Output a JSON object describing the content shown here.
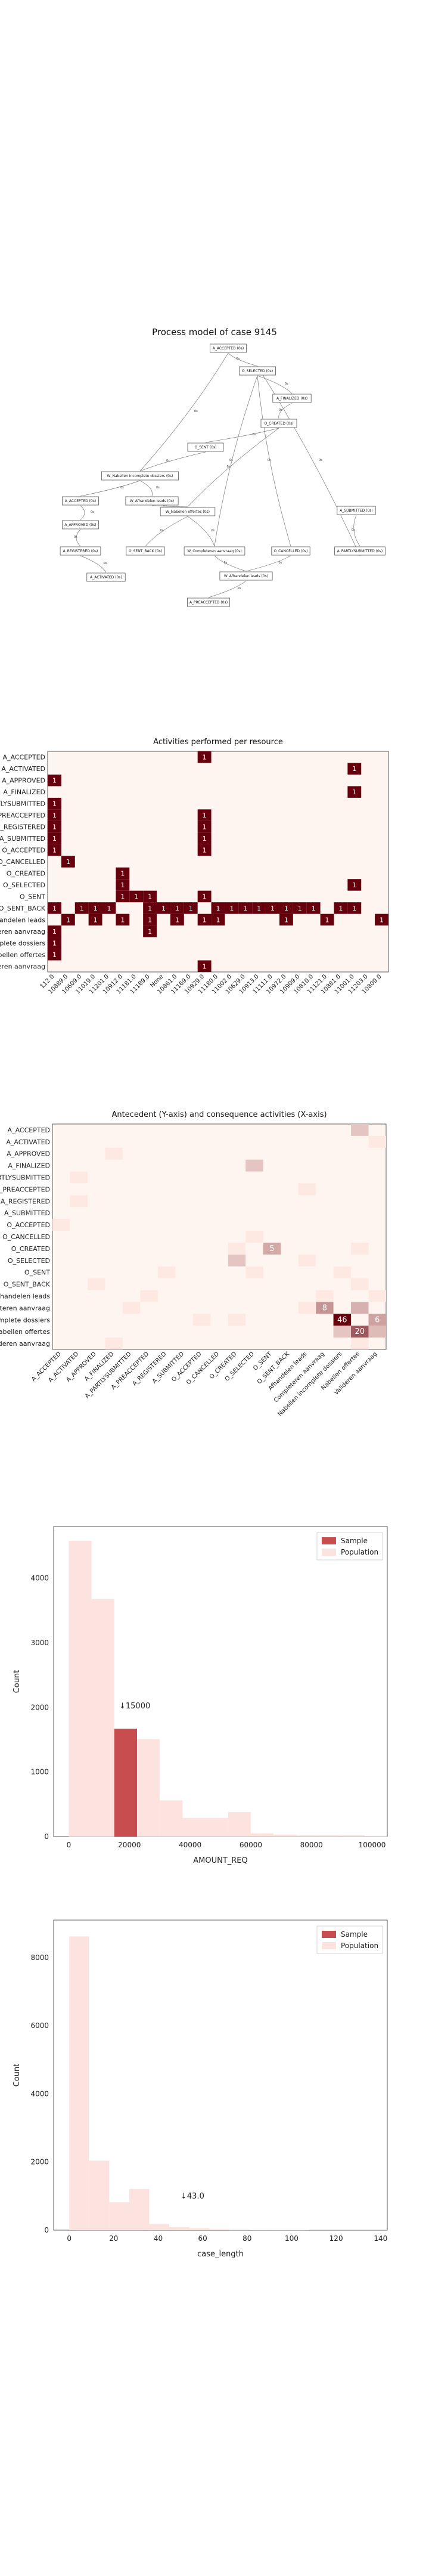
{
  "process_model": {
    "title": "Process model of case 9145",
    "nodes": [
      {
        "id": "aacc",
        "label": "A_ACCEPTED (0s)"
      },
      {
        "id": "oselS",
        "label": "O_SELECTED (0s)"
      },
      {
        "id": "afin",
        "label": "A_FINALIZED (0s)"
      },
      {
        "id": "ocre",
        "label": "O_CREATED (0s)"
      },
      {
        "id": "osent",
        "label": "O_SENT (0s)"
      },
      {
        "id": "wvul",
        "label": "W_Nabellen incomplete dossiers (0s)"
      },
      {
        "id": "aacc2",
        "label": "A_ACCEPTED (0s)"
      },
      {
        "id": "wvaan",
        "label": "W_Afhandelen leads (0s)"
      },
      {
        "id": "asub",
        "label": "A_SUBMITTED (0s)"
      },
      {
        "id": "aappr",
        "label": "A_APPROVED (0s)"
      },
      {
        "id": "wnab",
        "label": "W_Nabellen offertes (0s)"
      },
      {
        "id": "areg",
        "label": "A_REGISTERED (0s)"
      },
      {
        "id": "osb",
        "label": "O_SENT_BACK (0s)"
      },
      {
        "id": "wcomp",
        "label": "W_Completeren aanvraag (0s)"
      },
      {
        "id": "ocan",
        "label": "O_CANCELLED (0s)"
      },
      {
        "id": "apre",
        "label": "A_PARTLYSUBMITTED (0s)"
      },
      {
        "id": "aact",
        "label": "A_ACTIVATED (0s)"
      },
      {
        "id": "wafh",
        "label": "W_Afhandelen leads (0s)"
      },
      {
        "id": "aprea",
        "label": "A_PREACCEPTED (0s)"
      }
    ],
    "edge_labels": [
      "0s",
      "0s",
      "0s",
      "0s",
      "0s",
      "0s",
      "0s",
      "0s",
      "0s",
      "0s",
      "0s",
      "0s",
      "0s",
      "0s",
      "0s",
      "0s",
      "0s",
      "0s",
      "0s",
      "0s",
      "0s",
      "0s"
    ]
  },
  "heatmap1": {
    "title": "Activities performed per resource",
    "rows": [
      "A_ACCEPTED",
      "A_ACTIVATED",
      "A_APPROVED",
      "A_FINALIZED",
      "A_PARTLYSUBMITTED",
      "A_PREACCEPTED",
      "A_REGISTERED",
      "A_SUBMITTED",
      "O_ACCEPTED",
      "O_CANCELLED",
      "O_CREATED",
      "O_SELECTED",
      "O_SENT",
      "O_SENT_BACK",
      "W_Afhandelen leads",
      "W_Completeren aanvraag",
      "W_Nabellen incomplete dossiers",
      "W_Nabellen offertes",
      "W_Valideren aanvraag"
    ],
    "row_labels": [
      "A_ACCEPTED",
      "A_ACTIVATED",
      "A_APPROVED",
      "A_FINALIZED",
      "A_PARTLYSUBMITTED",
      "A_PREACCEPTED",
      "A_REGISTERED",
      "A_SUBMITTED",
      "O_ACCEPTED",
      "O_CANCELLED",
      "O_CREATED",
      "O_SELECTED",
      "O_SENT",
      "O_SENT_BACK",
      "Afhandelen leads",
      "Completeren aanvraag",
      "Nabellen incomplete dossiers",
      "Nabellen offertes",
      "Valideren aanvraag"
    ],
    "cols": [
      "112.0",
      "10889.0",
      "10609.0",
      "11019.0",
      "11201.0",
      "10912.0",
      "11181.0",
      "11189.0",
      "None",
      "10861.0",
      "11169.0",
      "10929.0",
      "11180.0",
      "11002.0",
      "10629.0",
      "10913.0",
      "11111.0",
      "10972.0",
      "10909.0",
      "10810.0",
      "11121.0",
      "10881.0",
      "11001.0",
      "11203.0",
      "10809.0"
    ],
    "cells": [
      [
        0,
        11,
        1
      ],
      [
        1,
        22,
        1
      ],
      [
        2,
        0,
        1
      ],
      [
        3,
        22,
        1
      ],
      [
        4,
        0,
        1
      ],
      [
        5,
        0,
        1
      ],
      [
        5,
        11,
        1
      ],
      [
        6,
        0,
        1
      ],
      [
        6,
        11,
        1
      ],
      [
        7,
        0,
        1
      ],
      [
        7,
        11,
        1
      ],
      [
        8,
        0,
        1
      ],
      [
        8,
        11,
        1
      ],
      [
        9,
        1,
        1
      ],
      [
        10,
        5,
        1
      ],
      [
        11,
        5,
        1
      ],
      [
        11,
        22,
        1
      ],
      [
        12,
        5,
        1
      ],
      [
        12,
        6,
        1
      ],
      [
        12,
        7,
        1
      ],
      [
        12,
        11,
        1
      ],
      [
        13,
        0,
        1
      ],
      [
        13,
        2,
        1
      ],
      [
        13,
        3,
        1
      ],
      [
        13,
        4,
        1
      ],
      [
        13,
        7,
        1
      ],
      [
        13,
        8,
        1
      ],
      [
        13,
        9,
        1
      ],
      [
        13,
        10,
        1
      ],
      [
        13,
        12,
        1
      ],
      [
        13,
        13,
        1
      ],
      [
        13,
        14,
        1
      ],
      [
        13,
        15,
        1
      ],
      [
        13,
        16,
        1
      ],
      [
        13,
        17,
        1
      ],
      [
        13,
        18,
        1
      ],
      [
        13,
        19,
        1
      ],
      [
        13,
        21,
        1
      ],
      [
        13,
        22,
        1
      ],
      [
        14,
        1,
        1
      ],
      [
        14,
        3,
        1
      ],
      [
        14,
        5,
        1
      ],
      [
        14,
        7,
        1
      ],
      [
        14,
        9,
        1
      ],
      [
        14,
        11,
        1
      ],
      [
        14,
        12,
        1
      ],
      [
        14,
        17,
        1
      ],
      [
        14,
        20,
        1
      ],
      [
        14,
        24,
        1
      ],
      [
        15,
        0,
        1
      ],
      [
        15,
        7,
        1
      ],
      [
        16,
        0,
        1
      ],
      [
        17,
        0,
        1
      ],
      [
        18,
        11,
        1
      ]
    ]
  },
  "heatmap2": {
    "title": "Antecedent (Y-axis) and consequence activities (X-axis)",
    "rows": [
      "A_ACCEPTED",
      "A_ACTIVATED",
      "A_APPROVED",
      "A_FINALIZED",
      "A_PARTLYSUBMITTED",
      "A_PREACCEPTED",
      "A_REGISTERED",
      "A_SUBMITTED",
      "O_ACCEPTED",
      "O_CANCELLED",
      "O_CREATED",
      "O_SELECTED",
      "O_SENT",
      "O_SENT_BACK",
      "Afhandelen leads",
      "Completeren aanvraag",
      "Nabellen incomplete dossiers",
      "Nabellen offertes",
      "Valideren aanvraag"
    ],
    "cols": [
      "A_ACCEPTED",
      "A_ACTIVATED",
      "A_APPROVED",
      "A_FINALIZED",
      "A_PARTLYSUBMITTED",
      "A_PREACCEPTED",
      "A_REGISTERED",
      "A_SUBMITTED",
      "O_ACCEPTED",
      "O_CANCELLED",
      "O_CREATED",
      "O_SELECTED",
      "O_SENT",
      "O_SENT_BACK",
      "Afhandelen leads",
      "Completeren aanvraag",
      "Nabellen incomplete dossiers",
      "Nabellen offertes",
      "Valideren aanvraag"
    ],
    "cells": [
      [
        0,
        17,
        2
      ],
      [
        1,
        18,
        1
      ],
      [
        2,
        3,
        1
      ],
      [
        3,
        11,
        2
      ],
      [
        4,
        1,
        1
      ],
      [
        5,
        14,
        1
      ],
      [
        6,
        1,
        1
      ],
      [
        8,
        0,
        1
      ],
      [
        9,
        11,
        1
      ],
      [
        10,
        12,
        5
      ],
      [
        11,
        10,
        2
      ],
      [
        12,
        16,
        1
      ],
      [
        13,
        2,
        1
      ],
      [
        14,
        15,
        1
      ],
      [
        14,
        18,
        1
      ],
      [
        15,
        15,
        8
      ],
      [
        15,
        17,
        4
      ],
      [
        16,
        16,
        46
      ],
      [
        16,
        18,
        6
      ],
      [
        17,
        17,
        20
      ],
      [
        17,
        18,
        3
      ],
      [
        18,
        3,
        1
      ],
      [
        18,
        17,
        1
      ],
      [
        16,
        8,
        1
      ],
      [
        16,
        10,
        1
      ],
      [
        12,
        11,
        1
      ],
      [
        17,
        16,
        2
      ],
      [
        10,
        10,
        1
      ],
      [
        15,
        14,
        1
      ],
      [
        13,
        17,
        1
      ],
      [
        14,
        5,
        1
      ],
      [
        11,
        14,
        1
      ],
      [
        12,
        6,
        1
      ],
      [
        15,
        4,
        1
      ],
      [
        10,
        17,
        1
      ]
    ],
    "labels": [
      [
        "Completeren aanvraag",
        "Afhandelen leads"
      ],
      [
        "Nabellen incomplete dossiers",
        "Nabellen incomplete dossiers"
      ],
      [
        "Nabellen offertes",
        "Nabellen offertes"
      ]
    ],
    "label_values": [
      "8",
      "46",
      "20"
    ]
  },
  "chart_data": [
    {
      "type": "bar",
      "title": "",
      "xlabel": "AMOUNT_REQ",
      "ylabel": "Count",
      "xlim": [
        -5000,
        105000
      ],
      "ylim": [
        0,
        4800
      ],
      "xticks": [
        "0",
        "20000",
        "40000",
        "60000",
        "80000",
        "100000"
      ],
      "yticks": [
        "0",
        "1000",
        "2000",
        "3000",
        "4000"
      ],
      "bin_edges": [
        0,
        7500,
        15000,
        22500,
        30000,
        37500,
        45000,
        52500,
        60000,
        67500,
        75000,
        82500,
        90000,
        97500,
        105000
      ],
      "series": [
        {
          "name": "Sample",
          "values": [
            0,
            0,
            1670,
            0,
            0,
            0,
            0,
            0,
            0,
            0,
            0,
            0,
            0,
            0
          ]
        },
        {
          "name": "Population",
          "values": [
            4580,
            3680,
            1670,
            1510,
            560,
            290,
            290,
            380,
            50,
            30,
            20,
            20,
            20,
            10
          ]
        }
      ],
      "annotation": "↓15000",
      "legend": "top-right",
      "colors": {
        "Sample": "#c74d4f",
        "Population": "#fde3df"
      }
    },
    {
      "type": "bar",
      "title": "",
      "xlabel": "case_length",
      "ylabel": "Count",
      "xlim": [
        -7,
        143
      ],
      "ylim": [
        0,
        9100
      ],
      "xticks": [
        "0",
        "20",
        "40",
        "60",
        "80",
        "100",
        "120",
        "140"
      ],
      "yticks": [
        "0",
        "2000",
        "4000",
        "6000",
        "8000"
      ],
      "bin_edges": [
        0,
        9,
        18,
        27,
        36,
        45,
        54,
        63,
        72,
        81,
        90,
        99,
        108,
        117,
        126,
        135,
        144
      ],
      "series": [
        {
          "name": "Sample",
          "values": [
            0,
            0,
            0,
            0,
            0,
            0,
            0,
            0,
            0,
            0,
            0,
            0,
            0,
            0,
            0,
            0
          ]
        },
        {
          "name": "Population",
          "values": [
            8620,
            2040,
            820,
            1210,
            180,
            90,
            60,
            30,
            20,
            10,
            10,
            10,
            5,
            5,
            5,
            5
          ]
        }
      ],
      "annotation": "↓43.0",
      "legend": "top-right",
      "colors": {
        "Sample": "#c74d4f",
        "Population": "#fde3df"
      }
    }
  ]
}
